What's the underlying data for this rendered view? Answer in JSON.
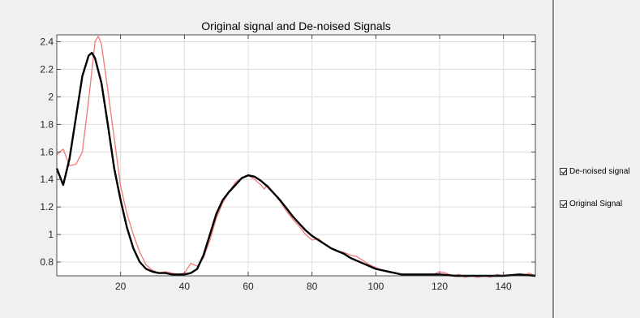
{
  "chart_data": {
    "type": "line",
    "title": "Original signal and De-noised Signals",
    "xlabel": "",
    "ylabel": "",
    "xlim": [
      0,
      150
    ],
    "ylim": [
      0.7,
      2.45
    ],
    "grid": true,
    "legend_placement": "right",
    "xticks": [
      20,
      40,
      60,
      80,
      100,
      120,
      140
    ],
    "yticks": [
      0.8,
      1,
      1.2,
      1.4,
      1.6,
      1.8,
      2,
      2.2,
      2.4
    ],
    "series": [
      {
        "name": "Original Signal",
        "color": "#f08080",
        "x": [
          0,
          2,
          4,
          6,
          8,
          10,
          12,
          13,
          14,
          16,
          18,
          20,
          22,
          24,
          26,
          28,
          30,
          32,
          34,
          36,
          38,
          40,
          42,
          44,
          46,
          48,
          50,
          52,
          54,
          56,
          58,
          60,
          62,
          64,
          65,
          66,
          68,
          70,
          72,
          74,
          76,
          78,
          80,
          82,
          84,
          86,
          88,
          90,
          92,
          94,
          96,
          98,
          100,
          102,
          104,
          106,
          108,
          110,
          112,
          114,
          116,
          118,
          120,
          122,
          124,
          126,
          128,
          130,
          132,
          134,
          136,
          138,
          140,
          142,
          144,
          146,
          148,
          150
        ],
        "y": [
          1.58,
          1.62,
          1.5,
          1.51,
          1.6,
          1.98,
          2.4,
          2.44,
          2.38,
          2.05,
          1.7,
          1.35,
          1.15,
          1.0,
          0.87,
          0.78,
          0.74,
          0.72,
          0.73,
          0.72,
          0.71,
          0.72,
          0.79,
          0.77,
          0.83,
          0.96,
          1.12,
          1.23,
          1.31,
          1.38,
          1.41,
          1.43,
          1.4,
          1.36,
          1.33,
          1.36,
          1.3,
          1.24,
          1.17,
          1.11,
          1.06,
          1.0,
          0.96,
          0.97,
          0.93,
          0.9,
          0.88,
          0.87,
          0.85,
          0.84,
          0.81,
          0.78,
          0.76,
          0.74,
          0.73,
          0.72,
          0.71,
          0.71,
          0.71,
          0.71,
          0.71,
          0.71,
          0.73,
          0.72,
          0.7,
          0.71,
          0.69,
          0.7,
          0.69,
          0.7,
          0.69,
          0.71,
          0.7,
          0.7,
          0.71,
          0.7,
          0.72,
          0.7
        ]
      },
      {
        "name": "De-noised signal",
        "color": "#000000",
        "x": [
          0,
          2,
          4,
          6,
          8,
          10,
          11,
          12,
          14,
          16,
          18,
          20,
          22,
          24,
          26,
          28,
          30,
          32,
          34,
          36,
          38,
          40,
          42,
          44,
          46,
          48,
          50,
          52,
          54,
          56,
          58,
          60,
          62,
          64,
          66,
          68,
          70,
          72,
          74,
          76,
          78,
          80,
          82,
          84,
          86,
          88,
          90,
          92,
          94,
          96,
          98,
          100,
          102,
          104,
          106,
          108,
          110,
          115,
          120,
          125,
          130,
          135,
          140,
          145,
          150
        ],
        "y": [
          1.48,
          1.36,
          1.55,
          1.85,
          2.15,
          2.3,
          2.32,
          2.28,
          2.1,
          1.8,
          1.48,
          1.25,
          1.05,
          0.9,
          0.8,
          0.75,
          0.73,
          0.72,
          0.72,
          0.71,
          0.71,
          0.71,
          0.72,
          0.75,
          0.85,
          1.0,
          1.15,
          1.25,
          1.31,
          1.36,
          1.41,
          1.43,
          1.42,
          1.39,
          1.35,
          1.3,
          1.25,
          1.19,
          1.13,
          1.08,
          1.03,
          0.99,
          0.96,
          0.93,
          0.9,
          0.88,
          0.86,
          0.83,
          0.81,
          0.79,
          0.77,
          0.75,
          0.74,
          0.73,
          0.72,
          0.71,
          0.71,
          0.71,
          0.71,
          0.7,
          0.7,
          0.7,
          0.7,
          0.71,
          0.7
        ]
      }
    ]
  },
  "legend": {
    "items": [
      {
        "label": "De-noised signal",
        "checked": true
      },
      {
        "label": "Original Signal",
        "checked": true
      }
    ]
  }
}
